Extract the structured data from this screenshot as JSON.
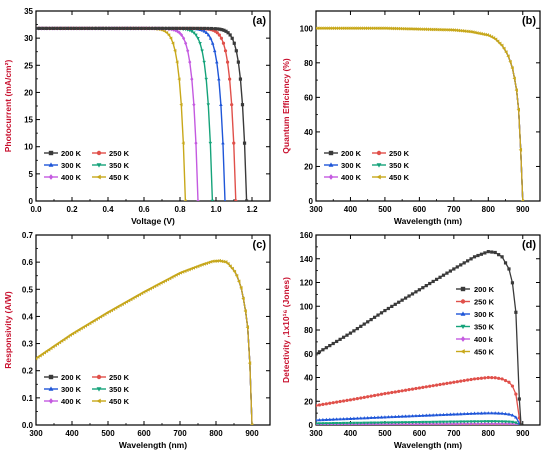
{
  "chart_data": [
    {
      "type": "line",
      "panel_label": "(a)",
      "xlabel": "Voltage (V)",
      "ylabel": "Photocurrent (mA/cm²)",
      "xlim": [
        0,
        1.3
      ],
      "ylim": [
        0,
        35
      ],
      "xticks": [
        "0.0",
        "0.2",
        "0.4",
        "0.6",
        "0.8",
        "1.0",
        "1.2"
      ],
      "yticks": [
        "0",
        "5",
        "10",
        "15",
        "20",
        "25",
        "30",
        "35"
      ],
      "legend_position": "lower-left",
      "legend_columns": 2,
      "series": [
        {
          "name": "200 K",
          "color": "#3a3a3a",
          "marker": "square",
          "jsc": 31.8,
          "voc": 1.17
        },
        {
          "name": "250 K",
          "color": "#e0504a",
          "marker": "circle",
          "jsc": 31.8,
          "voc": 1.11
        },
        {
          "name": "300 K",
          "color": "#1f56d8",
          "marker": "triangle-up",
          "jsc": 31.8,
          "voc": 1.05
        },
        {
          "name": "350 K",
          "color": "#15a37a",
          "marker": "triangle-down",
          "jsc": 31.8,
          "voc": 0.98
        },
        {
          "name": "400 K",
          "color": "#c45ae0",
          "marker": "diamond",
          "jsc": 31.8,
          "voc": 0.9
        },
        {
          "name": "450 K",
          "color": "#c8a81a",
          "marker": "triangle-left",
          "jsc": 31.8,
          "voc": 0.83
        }
      ]
    },
    {
      "type": "line",
      "panel_label": "(b)",
      "xlabel": "Wavelength (nm)",
      "ylabel": "Quantum Efficiency (%)",
      "xlim": [
        300,
        950
      ],
      "ylim": [
        0,
        110
      ],
      "xticks": [
        "300",
        "400",
        "500",
        "600",
        "700",
        "800",
        "900"
      ],
      "yticks": [
        "0",
        "20",
        "40",
        "60",
        "80",
        "100"
      ],
      "legend_position": "lower-left",
      "legend_columns": 2,
      "series": [
        {
          "name": "200 K",
          "color": "#3a3a3a"
        },
        {
          "name": "250 K",
          "color": "#e0504a"
        },
        {
          "name": "300 K",
          "color": "#1f56d8"
        },
        {
          "name": "350 K",
          "color": "#15a37a"
        },
        {
          "name": "400 K",
          "color": "#c45ae0"
        },
        {
          "name": "450 K",
          "color": "#c8a81a"
        }
      ],
      "curve": {
        "x": [
          300,
          500,
          700,
          750,
          800,
          820,
          840,
          850,
          860,
          870,
          880,
          885,
          890,
          895,
          900
        ],
        "y": [
          100,
          100,
          99,
          98,
          96,
          94,
          90,
          87,
          83,
          77,
          67,
          60,
          48,
          25,
          0
        ]
      }
    },
    {
      "type": "line",
      "panel_label": "(c)",
      "xlabel": "Wavelength (nm)",
      "ylabel": "Responsivity (A/W)",
      "xlim": [
        300,
        950
      ],
      "ylim": [
        0,
        0.7
      ],
      "xticks": [
        "300",
        "400",
        "500",
        "600",
        "700",
        "800",
        "900"
      ],
      "yticks": [
        "0.0",
        "0.1",
        "0.2",
        "0.3",
        "0.4",
        "0.5",
        "0.6",
        "0.7"
      ],
      "legend_position": "lower-left",
      "legend_columns": 2,
      "series": [
        {
          "name": "200 K",
          "color": "#3a3a3a"
        },
        {
          "name": "250 K",
          "color": "#e0504a"
        },
        {
          "name": "300 K",
          "color": "#1f56d8"
        },
        {
          "name": "350 K",
          "color": "#15a37a"
        },
        {
          "name": "400 K",
          "color": "#c45ae0"
        },
        {
          "name": "450 K",
          "color": "#c8a81a"
        }
      ],
      "curve": {
        "x": [
          300,
          400,
          500,
          600,
          700,
          760,
          790,
          810,
          830,
          850,
          860,
          870,
          880,
          890,
          895,
          900
        ],
        "y": [
          0.245,
          0.335,
          0.415,
          0.49,
          0.56,
          0.59,
          0.603,
          0.605,
          0.6,
          0.57,
          0.545,
          0.505,
          0.44,
          0.34,
          0.2,
          0.0
        ]
      }
    },
    {
      "type": "line",
      "panel_label": "(d)",
      "xlabel": "Wavelength (nm)",
      "ylabel": "Detectivity ,1x10¹⁶ (Jones)",
      "xlim": [
        300,
        950
      ],
      "ylim": [
        0,
        160
      ],
      "xticks": [
        "300",
        "400",
        "500",
        "600",
        "700",
        "800",
        "900"
      ],
      "yticks": [
        "0",
        "20",
        "40",
        "60",
        "80",
        "100",
        "120",
        "140",
        "160"
      ],
      "legend_position": "center-right",
      "legend_columns": 1,
      "series": [
        {
          "name": "200 K",
          "color": "#3a3a3a",
          "peak": 146
        },
        {
          "name": "250 K",
          "color": "#e0504a",
          "peak": 40
        },
        {
          "name": "300 K",
          "color": "#1f56d8",
          "peak": 10
        },
        {
          "name": "350 K",
          "color": "#15a37a",
          "peak": 3
        },
        {
          "name": "400 k",
          "color": "#c45ae0",
          "peak": 1
        },
        {
          "name": "450 K",
          "color": "#c8a81a",
          "peak": 0.4
        }
      ],
      "shape": {
        "x": [
          300,
          400,
          500,
          600,
          700,
          760,
          800,
          820,
          840,
          860,
          870,
          880,
          885,
          890,
          895
        ],
        "r": [
          0.41,
          0.53,
          0.66,
          0.78,
          0.9,
          0.97,
          1.0,
          0.995,
          0.97,
          0.9,
          0.82,
          0.65,
          0.45,
          0.15,
          0.0
        ]
      }
    }
  ]
}
